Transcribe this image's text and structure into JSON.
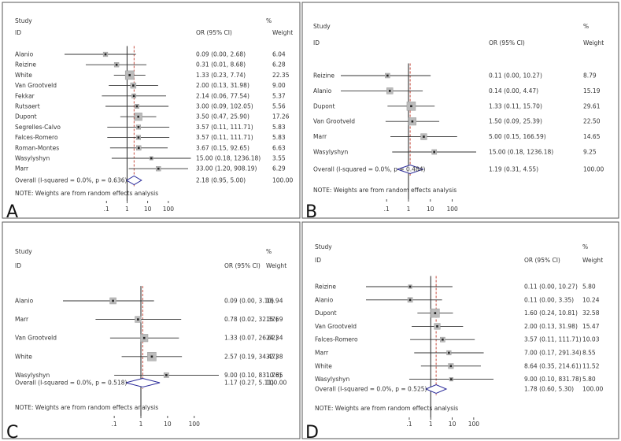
{
  "chart_data": [
    {
      "type": "forest",
      "panel_label": "A",
      "header": {
        "study": "Study",
        "id": "ID",
        "or": "OR (95% CI)",
        "pct": "%",
        "weight": "Weight"
      },
      "x_ticks": [
        ".1",
        "1",
        "10",
        "100"
      ],
      "x_tick_values": [
        0.1,
        1,
        10,
        100
      ],
      "xlim": [
        0.000933,
        908.19
      ],
      "studies": [
        {
          "name": "Alanio",
          "or": 0.09,
          "lo": 0.0,
          "hi": 2.68,
          "ci_text": "0.09 (0.00, 2.68)",
          "weight": 6.04,
          "weight_text": "6.04"
        },
        {
          "name": "Reizine",
          "or": 0.31,
          "lo": 0.01,
          "hi": 8.68,
          "ci_text": "0.31 (0.01, 8.68)",
          "weight": 6.28,
          "weight_text": "6.28"
        },
        {
          "name": "White",
          "or": 1.33,
          "lo": 0.23,
          "hi": 7.74,
          "ci_text": "1.33 (0.23, 7.74)",
          "weight": 22.35,
          "weight_text": "22.35"
        },
        {
          "name": "Van Grootveld",
          "or": 2.0,
          "lo": 0.13,
          "hi": 31.98,
          "ci_text": "2.00 (0.13, 31.98)",
          "weight": 9.0,
          "weight_text": "9.00"
        },
        {
          "name": "Fekkar",
          "or": 2.14,
          "lo": 0.06,
          "hi": 77.54,
          "ci_text": "2.14 (0.06, 77.54)",
          "weight": 5.37,
          "weight_text": "5.37"
        },
        {
          "name": "Rutsaert",
          "or": 3.0,
          "lo": 0.09,
          "hi": 102.05,
          "ci_text": "3.00 (0.09, 102.05)",
          "weight": 5.56,
          "weight_text": "5.56"
        },
        {
          "name": "Dupont",
          "or": 3.5,
          "lo": 0.47,
          "hi": 25.9,
          "ci_text": "3.50 (0.47, 25.90)",
          "weight": 17.26,
          "weight_text": "17.26"
        },
        {
          "name": "Segrelles-Calvo",
          "or": 3.57,
          "lo": 0.11,
          "hi": 111.71,
          "ci_text": "3.57 (0.11, 111.71)",
          "weight": 5.83,
          "weight_text": "5.83"
        },
        {
          "name": "Falces-Romero",
          "or": 3.57,
          "lo": 0.11,
          "hi": 111.71,
          "ci_text": "3.57 (0.11, 111.71)",
          "weight": 5.83,
          "weight_text": "5.83"
        },
        {
          "name": "Roman-Montes",
          "or": 3.67,
          "lo": 0.15,
          "hi": 92.65,
          "ci_text": "3.67 (0.15, 92.65)",
          "weight": 6.63,
          "weight_text": "6.63"
        },
        {
          "name": "Wasylyshyn",
          "or": 15.0,
          "lo": 0.18,
          "hi": 1236.18,
          "ci_text": "15.00 (0.18, 1236.18)",
          "weight": 3.55,
          "weight_text": "3.55"
        },
        {
          "name": "Marr",
          "or": 33.0,
          "lo": 1.2,
          "hi": 908.19,
          "ci_text": "33.00 (1.20, 908.19)",
          "weight": 6.29,
          "weight_text": "6.29"
        }
      ],
      "overall": {
        "label": "Overall  (I-squared = 0.0%, p = 0.636)",
        "or": 2.18,
        "lo": 0.95,
        "hi": 5.0,
        "ci_text": "2.18 (0.95, 5.00)",
        "weight_text": "100.00"
      },
      "note": "NOTE: Weights are from random effects analysis"
    },
    {
      "type": "forest",
      "panel_label": "B",
      "header": {
        "study": "Study",
        "id": "ID",
        "or": "OR (95% CI)",
        "pct": "%",
        "weight": "Weight"
      },
      "x_ticks": [
        ".1",
        "1",
        "10",
        "100"
      ],
      "x_tick_values": [
        0.1,
        1,
        10,
        100
      ],
      "xlim": [
        0.000809,
        1236.18
      ],
      "studies": [
        {
          "name": "Reizine",
          "or": 0.11,
          "lo": 0.0,
          "hi": 10.27,
          "ci_text": "0.11 (0.00, 10.27)",
          "weight": 8.79,
          "weight_text": "8.79"
        },
        {
          "name": "Alanio",
          "or": 0.14,
          "lo": 0.0,
          "hi": 4.47,
          "ci_text": "0.14 (0.00, 4.47)",
          "weight": 15.19,
          "weight_text": "15.19"
        },
        {
          "name": "Dupont",
          "or": 1.33,
          "lo": 0.11,
          "hi": 15.7,
          "ci_text": "1.33 (0.11, 15.70)",
          "weight": 29.61,
          "weight_text": "29.61"
        },
        {
          "name": "Van Grootveld",
          "or": 1.5,
          "lo": 0.09,
          "hi": 25.39,
          "ci_text": "1.50 (0.09, 25.39)",
          "weight": 22.5,
          "weight_text": "22.50"
        },
        {
          "name": "Marr",
          "or": 5.0,
          "lo": 0.15,
          "hi": 166.59,
          "ci_text": "5.00 (0.15, 166.59)",
          "weight": 14.65,
          "weight_text": "14.65"
        },
        {
          "name": "Wasylyshyn",
          "or": 15.0,
          "lo": 0.18,
          "hi": 1236.18,
          "ci_text": "15.00 (0.18, 1236.18)",
          "weight": 9.25,
          "weight_text": "9.25"
        }
      ],
      "overall": {
        "label": "Overall  (I-squared = 0.0%, p = 0.484)",
        "or": 1.19,
        "lo": 0.31,
        "hi": 4.55,
        "ci_text": "1.19 (0.31, 4.55)",
        "weight_text": "100.00"
      },
      "note": "NOTE: Weights are from random effects analysis"
    },
    {
      "type": "forest",
      "panel_label": "C",
      "header": {
        "study": "Study",
        "id": "ID",
        "or": "OR (95% CI)",
        "pct": "%",
        "weight": "Weight"
      },
      "x_ticks": [
        ".1",
        "1",
        "10",
        "100"
      ],
      "x_tick_values": [
        0.1,
        1,
        10,
        100
      ],
      "xlim": [
        0.0012,
        831.78
      ],
      "studies": [
        {
          "name": "Alanio",
          "or": 0.09,
          "lo": 0.0,
          "hi": 3.1,
          "ci_text": "0.09 (0.00, 3.10)",
          "weight": 16.94,
          "weight_text": "16.94"
        },
        {
          "name": "Marr",
          "or": 0.78,
          "lo": 0.02,
          "hi": 32.37,
          "ci_text": "0.78 (0.02, 32.37)",
          "weight": 15.69,
          "weight_text": "15.69"
        },
        {
          "name": "Van Grootveld",
          "or": 1.33,
          "lo": 0.07,
          "hi": 26.62,
          "ci_text": "1.33 (0.07, 26.62)",
          "weight": 24.34,
          "weight_text": "24.34"
        },
        {
          "name": "White",
          "or": 2.57,
          "lo": 0.19,
          "hi": 34.47,
          "ci_text": "2.57 (0.19, 34.47)",
          "weight": 32.38,
          "weight_text": "32.38"
        },
        {
          "name": "Wasylyshyn",
          "or": 9.0,
          "lo": 0.1,
          "hi": 831.78,
          "ci_text": "9.00 (0.10, 831.78)",
          "weight": 10.65,
          "weight_text": "10.65"
        }
      ],
      "overall": {
        "label": "Overall  (I-squared = 0.0%, p = 0.518)",
        "or": 1.17,
        "lo": 0.27,
        "hi": 5.11,
        "ci_text": "1.17 (0.27, 5.11)",
        "weight_text": "100.00"
      },
      "note": "NOTE: Weights are from random effects analysis"
    },
    {
      "type": "forest",
      "panel_label": "D",
      "header": {
        "study": "Study",
        "id": "ID",
        "or": "OR (95% CI)",
        "pct": "%",
        "weight": "Weight"
      },
      "x_ticks": [
        ".1",
        "1",
        "10",
        "100"
      ],
      "x_tick_values": [
        0.1,
        1,
        10,
        100
      ],
      "xlim": [
        0.00097,
        831.78
      ],
      "studies": [
        {
          "name": "Reizine",
          "or": 0.11,
          "lo": 0.0,
          "hi": 10.27,
          "ci_text": "0.11 (0.00, 10.27)",
          "weight": 5.8,
          "weight_text": "5.80"
        },
        {
          "name": "Alanio",
          "or": 0.11,
          "lo": 0.0,
          "hi": 3.35,
          "ci_text": "0.11 (0.00, 3.35)",
          "weight": 10.24,
          "weight_text": "10.24"
        },
        {
          "name": "Dupont",
          "or": 1.6,
          "lo": 0.24,
          "hi": 10.81,
          "ci_text": "1.60 (0.24, 10.81)",
          "weight": 32.58,
          "weight_text": "32.58"
        },
        {
          "name": "Van Grootveld",
          "or": 2.0,
          "lo": 0.13,
          "hi": 31.98,
          "ci_text": "2.00 (0.13, 31.98)",
          "weight": 15.47,
          "weight_text": "15.47"
        },
        {
          "name": "Falces-Romero",
          "or": 3.57,
          "lo": 0.11,
          "hi": 111.71,
          "ci_text": "3.57 (0.11, 111.71)",
          "weight": 10.03,
          "weight_text": "10.03"
        },
        {
          "name": "Marr",
          "or": 7.0,
          "lo": 0.17,
          "hi": 291.34,
          "ci_text": "7.00 (0.17, 291.34)",
          "weight": 8.55,
          "weight_text": "8.55"
        },
        {
          "name": "White",
          "or": 8.64,
          "lo": 0.35,
          "hi": 214.61,
          "ci_text": "8.64 (0.35, 214.61)",
          "weight": 11.52,
          "weight_text": "11.52"
        },
        {
          "name": "Wasylyshyn",
          "or": 9.0,
          "lo": 0.1,
          "hi": 831.78,
          "ci_text": "9.00 (0.10, 831.78)",
          "weight": 5.8,
          "weight_text": "5.80"
        }
      ],
      "overall": {
        "label": "Overall  (I-squared = 0.0%, p = 0.525)",
        "or": 1.78,
        "lo": 0.6,
        "hi": 5.3,
        "ci_text": "1.78 (0.60, 5.30)",
        "weight_text": "100.00"
      },
      "note": "NOTE: Weights are from random effects analysis"
    }
  ],
  "colors": {
    "line": "#222222",
    "ci": "#333333",
    "square_fill": "#bbbbbb",
    "square_stroke": "#999999",
    "diamond": "#2b2b9a",
    "null_line": "#222222",
    "pooled_line": "#c0392b",
    "border": "#555555"
  }
}
